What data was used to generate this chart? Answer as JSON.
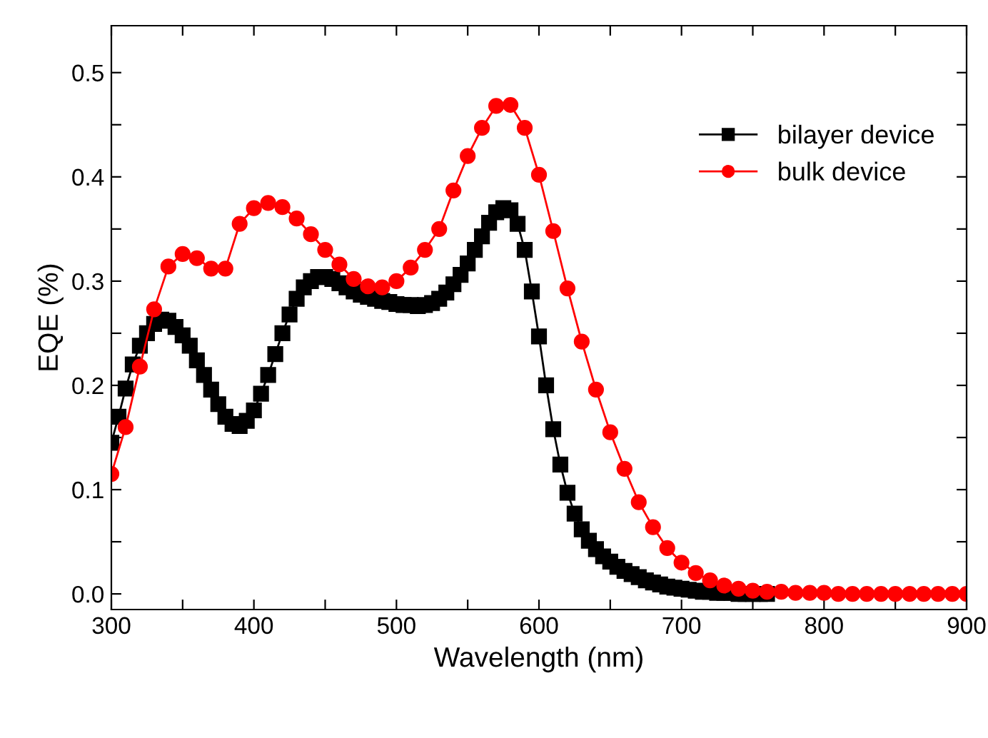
{
  "chart_data": {
    "type": "line",
    "xlabel": "Wavelength (nm)",
    "ylabel": "EQE (%)",
    "xlim": [
      300,
      900
    ],
    "xticks": [
      300,
      {
        "value": 350,
        "label": null
      },
      400,
      {
        "value": 450,
        "label": null
      },
      500,
      {
        "value": 550,
        "label": null
      },
      600,
      {
        "value": 650,
        "label": null
      },
      700,
      {
        "value": 750,
        "label": null
      },
      800,
      {
        "value": 850,
        "label": null
      },
      900
    ],
    "ylim": [
      -0.015,
      0.545
    ],
    "yticks": [
      {
        "value": 0,
        "label": "0.0"
      },
      {
        "value": 0.05,
        "label": null
      },
      0.1,
      {
        "value": 0.15,
        "label": null
      },
      0.2,
      {
        "value": 0.25,
        "label": null
      },
      0.3,
      {
        "value": 0.35,
        "label": null
      },
      0.4,
      {
        "value": 0.45,
        "label": null
      },
      0.5
    ],
    "grid": false,
    "legend": "top right",
    "series": [
      {
        "name": "bilayer device",
        "color": "#000000",
        "marker": "square",
        "x": [
          300,
          305,
          310,
          315,
          320,
          325,
          330,
          335,
          340,
          345,
          350,
          355,
          360,
          365,
          370,
          375,
          380,
          385,
          390,
          395,
          400,
          405,
          410,
          415,
          420,
          425,
          430,
          435,
          440,
          445,
          450,
          455,
          460,
          465,
          470,
          475,
          480,
          485,
          490,
          495,
          500,
          505,
          510,
          515,
          520,
          525,
          530,
          535,
          540,
          545,
          550,
          555,
          560,
          565,
          570,
          575,
          580,
          585,
          590,
          595,
          600,
          605,
          610,
          615,
          620,
          625,
          630,
          635,
          640,
          645,
          650,
          655,
          660,
          665,
          670,
          675,
          680,
          685,
          690,
          695,
          700,
          705,
          710,
          715,
          720,
          725,
          730,
          735,
          740,
          745,
          750,
          755,
          760
        ],
        "values": [
          0.145,
          0.17,
          0.197,
          0.22,
          0.238,
          0.25,
          0.259,
          0.263,
          0.262,
          0.256,
          0.248,
          0.238,
          0.224,
          0.21,
          0.196,
          0.182,
          0.17,
          0.163,
          0.161,
          0.166,
          0.176,
          0.192,
          0.21,
          0.23,
          0.25,
          0.268,
          0.283,
          0.294,
          0.3,
          0.304,
          0.304,
          0.302,
          0.298,
          0.294,
          0.29,
          0.287,
          0.285,
          0.283,
          0.281,
          0.28,
          0.278,
          0.277,
          0.277,
          0.276,
          0.277,
          0.279,
          0.283,
          0.289,
          0.297,
          0.306,
          0.317,
          0.33,
          0.343,
          0.356,
          0.366,
          0.37,
          0.368,
          0.355,
          0.33,
          0.29,
          0.247,
          0.2,
          0.158,
          0.124,
          0.097,
          0.077,
          0.062,
          0.051,
          0.043,
          0.036,
          0.031,
          0.026,
          0.022,
          0.019,
          0.016,
          0.013,
          0.011,
          0.009,
          0.007,
          0.006,
          0.005,
          0.004,
          0.003,
          0.002,
          0.002,
          0.001,
          0.001,
          0.001,
          0.0,
          0.0,
          0.0,
          0.0,
          0.0
        ]
      },
      {
        "name": "bulk device",
        "color": "#ff0000",
        "marker": "circle",
        "x": [
          300,
          310,
          320,
          330,
          340,
          350,
          360,
          370,
          380,
          390,
          400,
          410,
          420,
          430,
          440,
          450,
          460,
          470,
          480,
          490,
          500,
          510,
          520,
          530,
          540,
          550,
          560,
          570,
          580,
          590,
          600,
          610,
          620,
          630,
          640,
          650,
          660,
          670,
          680,
          690,
          700,
          710,
          720,
          730,
          740,
          750,
          760,
          770,
          780,
          790,
          800,
          810,
          820,
          830,
          840,
          850,
          860,
          870,
          880,
          890,
          900
        ],
        "values": [
          0.115,
          0.16,
          0.218,
          0.273,
          0.314,
          0.326,
          0.322,
          0.312,
          0.312,
          0.355,
          0.37,
          0.375,
          0.371,
          0.36,
          0.345,
          0.33,
          0.316,
          0.302,
          0.295,
          0.294,
          0.3,
          0.313,
          0.33,
          0.35,
          0.387,
          0.42,
          0.447,
          0.468,
          0.469,
          0.447,
          0.402,
          0.348,
          0.293,
          0.242,
          0.196,
          0.155,
          0.12,
          0.088,
          0.064,
          0.044,
          0.03,
          0.02,
          0.013,
          0.008,
          0.005,
          0.003,
          0.002,
          0.002,
          0.001,
          0.001,
          0.001,
          0.0,
          0.0,
          0.0,
          0.0,
          0.0,
          0.0,
          0.0,
          0.0,
          0.0,
          0.0
        ]
      }
    ]
  }
}
